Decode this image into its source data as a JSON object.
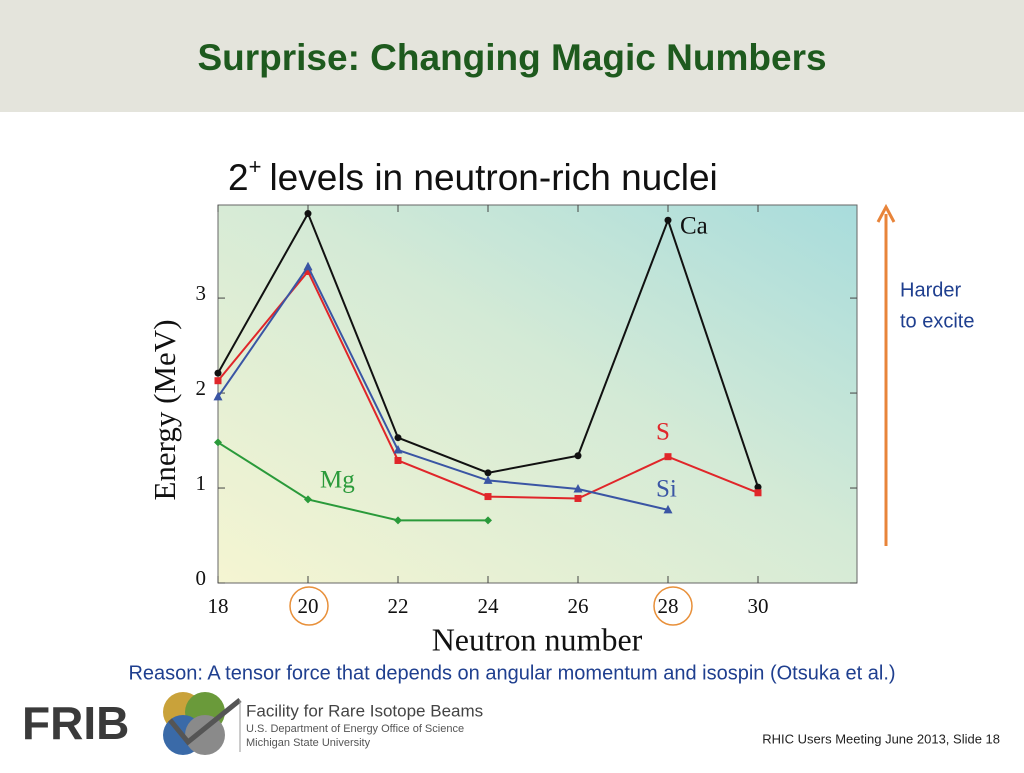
{
  "slide": {
    "title": "Surprise: Changing Magic Numbers",
    "note": [
      "Harder",
      "to excite"
    ],
    "reason": "Reason: A tensor force that depends on angular momentum and isospin (Otsuka et al.)",
    "logo": "FRIB",
    "org": [
      "Facility for Rare Isotope Beams",
      "U.S. Department of Energy Office of Science",
      "Michigan State University"
    ],
    "footer": "RHIC Users Meeting June 2013, Slide 18"
  },
  "chart_data": {
    "type": "line",
    "title_parts": [
      "2",
      "+",
      "levels in neutron-rich nuclei"
    ],
    "x_label": "Neutron number",
    "y_label": "Energy (MeV)",
    "x": [
      18,
      20,
      22,
      24,
      26,
      28,
      30
    ],
    "series": [
      {
        "name": "Ca",
        "color": "#111111",
        "marker": "circle",
        "values": [
          2.21,
          3.89,
          1.53,
          1.16,
          1.34,
          3.82,
          1.01
        ]
      },
      {
        "name": "S",
        "color": "#e0262a",
        "marker": "square",
        "values": [
          2.13,
          3.28,
          1.29,
          0.91,
          0.89,
          1.33,
          0.95
        ]
      },
      {
        "name": "Si",
        "color": "#3a55a4",
        "marker": "triangle",
        "values": [
          1.96,
          3.33,
          1.4,
          1.08,
          0.99,
          0.77,
          null
        ]
      },
      {
        "name": "Mg",
        "color": "#2a9a3a",
        "marker": "diamond",
        "values": [
          1.48,
          0.88,
          0.66,
          0.66,
          null,
          null,
          null
        ]
      }
    ],
    "xlim": [
      18,
      32.2
    ],
    "ylim": [
      0,
      3.98
    ],
    "xticks": [
      18,
      20,
      22,
      24,
      26,
      28,
      30
    ],
    "yticks": [
      0,
      1,
      2,
      3
    ]
  }
}
